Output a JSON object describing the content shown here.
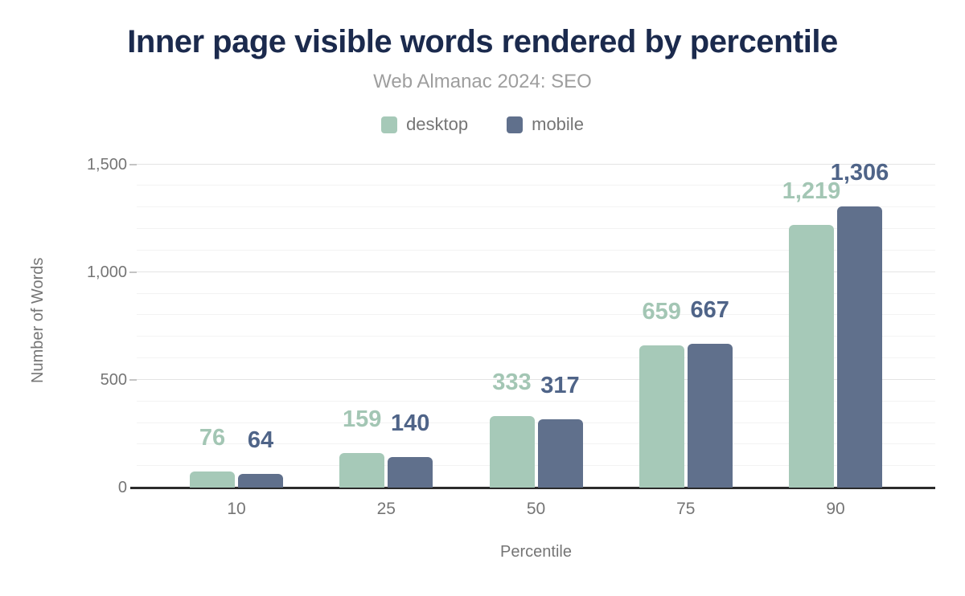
{
  "header": {
    "title": "Inner page visible words rendered by percentile",
    "subtitle": "Web Almanac 2024: SEO"
  },
  "legend": [
    {
      "label": "desktop",
      "color": "#a6c9b8"
    },
    {
      "label": "mobile",
      "color": "#60708c"
    }
  ],
  "chart_data": {
    "type": "bar",
    "title": "Inner page visible words rendered by percentile",
    "subtitle": "Web Almanac 2024: SEO",
    "categories": [
      "10",
      "25",
      "50",
      "75",
      "90"
    ],
    "series": [
      {
        "name": "desktop",
        "color": "#a6c9b8",
        "label_color": "#a3c6b4",
        "values": [
          76,
          159,
          333,
          659,
          1219
        ],
        "value_labels": [
          "76",
          "159",
          "333",
          "659",
          "1,219"
        ]
      },
      {
        "name": "mobile",
        "color": "#60708c",
        "label_color": "#4f6488",
        "values": [
          64,
          140,
          317,
          667,
          1306
        ],
        "value_labels": [
          "64",
          "140",
          "317",
          "667",
          "1,306"
        ]
      }
    ],
    "xlabel": "Percentile",
    "ylabel": "Number of Words",
    "ylim": [
      0,
      1500
    ],
    "yticks": [
      {
        "value": 0,
        "label": "0"
      },
      {
        "value": 500,
        "label": "500"
      },
      {
        "value": 1000,
        "label": "1,000"
      },
      {
        "value": 1500,
        "label": "1,500"
      }
    ],
    "minor_grid_step": 100,
    "grid": true,
    "legend_position": "top"
  },
  "colors": {
    "title": "#1b2a4d",
    "subtitle": "#9e9e9e",
    "axis_text": "#757575",
    "grid_major": "#e4e4e4",
    "grid_minor": "#f3f3f3",
    "axis_line": "#2b2b2b",
    "background": "#ffffff"
  }
}
